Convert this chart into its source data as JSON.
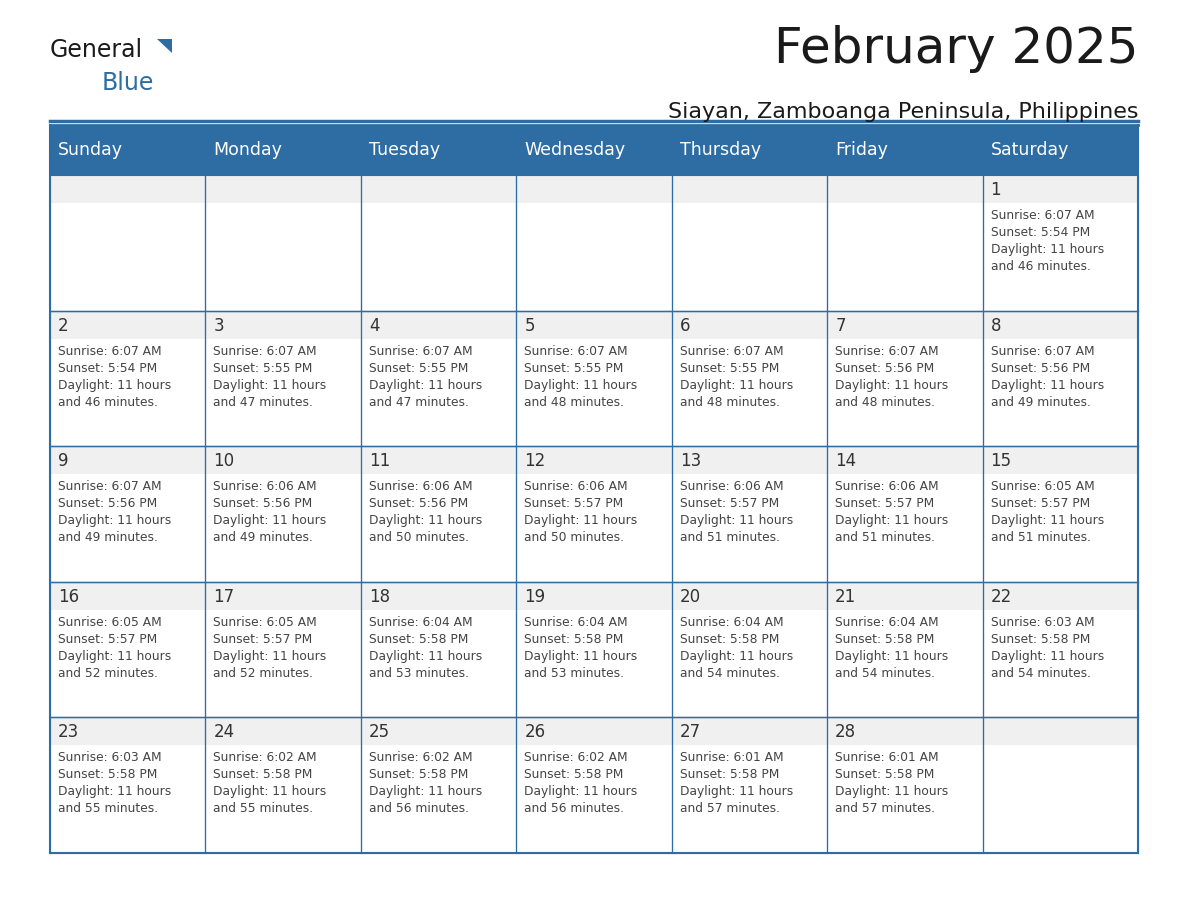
{
  "title": "February 2025",
  "subtitle": "Siayan, Zamboanga Peninsula, Philippines",
  "header_color": "#2E6DA4",
  "header_text_color": "#FFFFFF",
  "cell_top_bg": "#F0F0F0",
  "cell_bottom_bg": "#FFFFFF",
  "day_number_color": "#333333",
  "text_color": "#444444",
  "border_color": "#2E6DA4",
  "line_color": "#2E6DA4",
  "days_of_week": [
    "Sunday",
    "Monday",
    "Tuesday",
    "Wednesday",
    "Thursday",
    "Friday",
    "Saturday"
  ],
  "calendar_data": [
    [
      null,
      null,
      null,
      null,
      null,
      null,
      {
        "day": "1",
        "sunrise": "6:07 AM",
        "sunset": "5:54 PM",
        "daylight_hours": "11 hours",
        "daylight_mins": "and 46 minutes."
      }
    ],
    [
      {
        "day": "2",
        "sunrise": "6:07 AM",
        "sunset": "5:54 PM",
        "daylight_hours": "11 hours",
        "daylight_mins": "and 46 minutes."
      },
      {
        "day": "3",
        "sunrise": "6:07 AM",
        "sunset": "5:55 PM",
        "daylight_hours": "11 hours",
        "daylight_mins": "and 47 minutes."
      },
      {
        "day": "4",
        "sunrise": "6:07 AM",
        "sunset": "5:55 PM",
        "daylight_hours": "11 hours",
        "daylight_mins": "and 47 minutes."
      },
      {
        "day": "5",
        "sunrise": "6:07 AM",
        "sunset": "5:55 PM",
        "daylight_hours": "11 hours",
        "daylight_mins": "and 48 minutes."
      },
      {
        "day": "6",
        "sunrise": "6:07 AM",
        "sunset": "5:55 PM",
        "daylight_hours": "11 hours",
        "daylight_mins": "and 48 minutes."
      },
      {
        "day": "7",
        "sunrise": "6:07 AM",
        "sunset": "5:56 PM",
        "daylight_hours": "11 hours",
        "daylight_mins": "and 48 minutes."
      },
      {
        "day": "8",
        "sunrise": "6:07 AM",
        "sunset": "5:56 PM",
        "daylight_hours": "11 hours",
        "daylight_mins": "and 49 minutes."
      }
    ],
    [
      {
        "day": "9",
        "sunrise": "6:07 AM",
        "sunset": "5:56 PM",
        "daylight_hours": "11 hours",
        "daylight_mins": "and 49 minutes."
      },
      {
        "day": "10",
        "sunrise": "6:06 AM",
        "sunset": "5:56 PM",
        "daylight_hours": "11 hours",
        "daylight_mins": "and 49 minutes."
      },
      {
        "day": "11",
        "sunrise": "6:06 AM",
        "sunset": "5:56 PM",
        "daylight_hours": "11 hours",
        "daylight_mins": "and 50 minutes."
      },
      {
        "day": "12",
        "sunrise": "6:06 AM",
        "sunset": "5:57 PM",
        "daylight_hours": "11 hours",
        "daylight_mins": "and 50 minutes."
      },
      {
        "day": "13",
        "sunrise": "6:06 AM",
        "sunset": "5:57 PM",
        "daylight_hours": "11 hours",
        "daylight_mins": "and 51 minutes."
      },
      {
        "day": "14",
        "sunrise": "6:06 AM",
        "sunset": "5:57 PM",
        "daylight_hours": "11 hours",
        "daylight_mins": "and 51 minutes."
      },
      {
        "day": "15",
        "sunrise": "6:05 AM",
        "sunset": "5:57 PM",
        "daylight_hours": "11 hours",
        "daylight_mins": "and 51 minutes."
      }
    ],
    [
      {
        "day": "16",
        "sunrise": "6:05 AM",
        "sunset": "5:57 PM",
        "daylight_hours": "11 hours",
        "daylight_mins": "and 52 minutes."
      },
      {
        "day": "17",
        "sunrise": "6:05 AM",
        "sunset": "5:57 PM",
        "daylight_hours": "11 hours",
        "daylight_mins": "and 52 minutes."
      },
      {
        "day": "18",
        "sunrise": "6:04 AM",
        "sunset": "5:58 PM",
        "daylight_hours": "11 hours",
        "daylight_mins": "and 53 minutes."
      },
      {
        "day": "19",
        "sunrise": "6:04 AM",
        "sunset": "5:58 PM",
        "daylight_hours": "11 hours",
        "daylight_mins": "and 53 minutes."
      },
      {
        "day": "20",
        "sunrise": "6:04 AM",
        "sunset": "5:58 PM",
        "daylight_hours": "11 hours",
        "daylight_mins": "and 54 minutes."
      },
      {
        "day": "21",
        "sunrise": "6:04 AM",
        "sunset": "5:58 PM",
        "daylight_hours": "11 hours",
        "daylight_mins": "and 54 minutes."
      },
      {
        "day": "22",
        "sunrise": "6:03 AM",
        "sunset": "5:58 PM",
        "daylight_hours": "11 hours",
        "daylight_mins": "and 54 minutes."
      }
    ],
    [
      {
        "day": "23",
        "sunrise": "6:03 AM",
        "sunset": "5:58 PM",
        "daylight_hours": "11 hours",
        "daylight_mins": "and 55 minutes."
      },
      {
        "day": "24",
        "sunrise": "6:02 AM",
        "sunset": "5:58 PM",
        "daylight_hours": "11 hours",
        "daylight_mins": "and 55 minutes."
      },
      {
        "day": "25",
        "sunrise": "6:02 AM",
        "sunset": "5:58 PM",
        "daylight_hours": "11 hours",
        "daylight_mins": "and 56 minutes."
      },
      {
        "day": "26",
        "sunrise": "6:02 AM",
        "sunset": "5:58 PM",
        "daylight_hours": "11 hours",
        "daylight_mins": "and 56 minutes."
      },
      {
        "day": "27",
        "sunrise": "6:01 AM",
        "sunset": "5:58 PM",
        "daylight_hours": "11 hours",
        "daylight_mins": "and 57 minutes."
      },
      {
        "day": "28",
        "sunrise": "6:01 AM",
        "sunset": "5:58 PM",
        "daylight_hours": "11 hours",
        "daylight_mins": "and 57 minutes."
      },
      null
    ]
  ]
}
